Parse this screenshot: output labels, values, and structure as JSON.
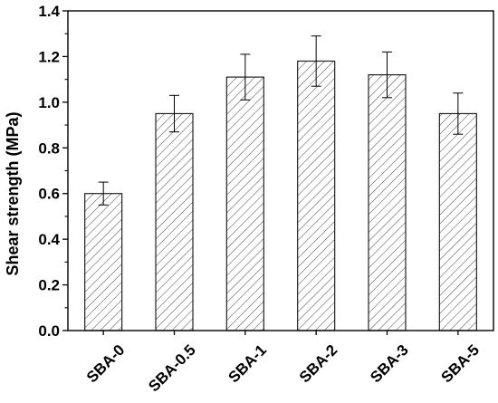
{
  "chart_data": {
    "type": "bar",
    "title": "",
    "xlabel": "",
    "ylabel": "Shear strength (MPa)",
    "ylim": [
      0.0,
      1.4
    ],
    "yticks": [
      "0.0",
      "0.2",
      "0.4",
      "0.6",
      "0.8",
      "1.0",
      "1.2",
      "1.4"
    ],
    "grid": false,
    "bar_fill": "hatched",
    "colors": {
      "axis": "#000000",
      "bar_stroke": "#222222",
      "hatch": "#555555",
      "background": "#ffffff"
    },
    "categories": [
      "SBA-0",
      "SBA-0.5",
      "SBA-1",
      "SBA-2",
      "SBA-3",
      "SBA-5"
    ],
    "values": [
      0.6,
      0.95,
      1.11,
      1.18,
      1.12,
      0.95
    ],
    "errors": [
      0.05,
      0.08,
      0.1,
      0.11,
      0.1,
      0.09
    ]
  }
}
